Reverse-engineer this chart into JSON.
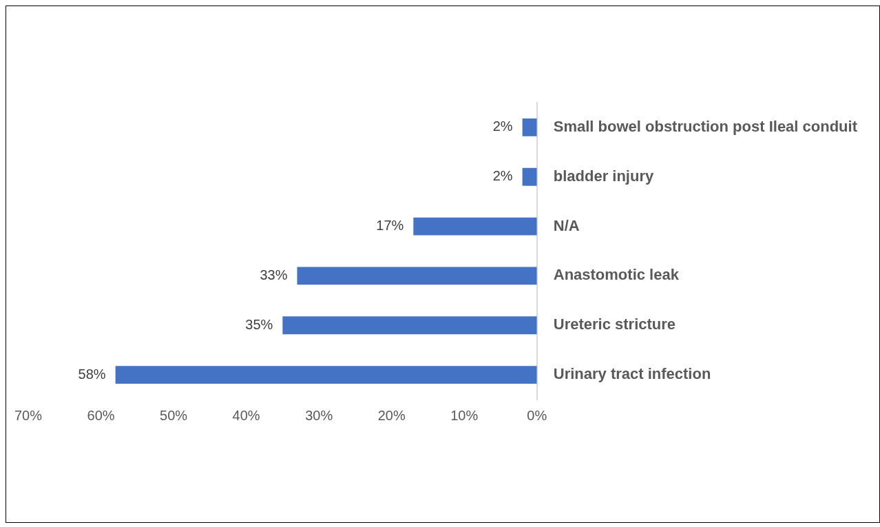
{
  "chart_data": {
    "type": "bar",
    "orientation": "horizontal",
    "categories": [
      "Small bowel obstruction post Ileal conduit",
      "bladder injury",
      "N/A",
      "Anastomotic leak",
      "Ureteric stricture",
      "Urinary tract infection"
    ],
    "values": [
      2,
      2,
      17,
      33,
      35,
      58
    ],
    "value_labels": [
      "2%",
      "2%",
      "17%",
      "33%",
      "35%",
      "58%"
    ],
    "color": "#4472c4",
    "xlim": [
      70,
      0
    ],
    "xticks": [
      {
        "value": 70,
        "label": "70%"
      },
      {
        "value": 60,
        "label": "60%"
      },
      {
        "value": 50,
        "label": "50%"
      },
      {
        "value": 40,
        "label": "40%"
      },
      {
        "value": 30,
        "label": "30%"
      },
      {
        "value": 20,
        "label": "20%"
      },
      {
        "value": 10,
        "label": "10%"
      },
      {
        "value": 0,
        "label": "0%"
      }
    ]
  }
}
